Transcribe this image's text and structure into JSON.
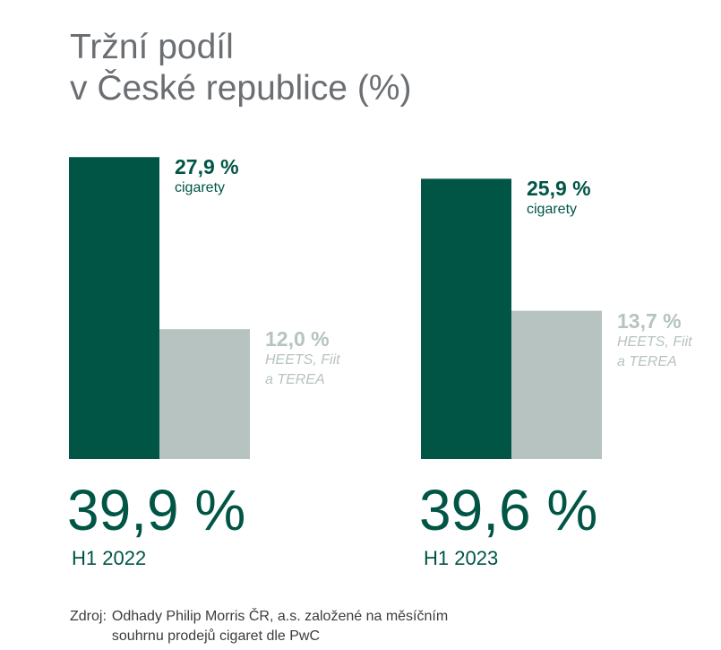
{
  "title_line1": "Tržní podíl",
  "title_line2": "v České republice (%)",
  "chart_data": {
    "type": "bar",
    "categories": [
      "H1 2022",
      "H1 2023"
    ],
    "series": [
      {
        "name": "cigarety",
        "values": [
          27.9,
          25.9
        ]
      },
      {
        "name": "HEETS, Fiit a TEREA",
        "values": [
          12.0,
          13.7
        ]
      }
    ],
    "ylim": [
      0,
      28.5
    ],
    "grid": false
  },
  "groups": [
    {
      "total": "39,9 %",
      "period": "H1 2022",
      "dark_value": "27,9 %",
      "dark_label": "cigarety",
      "light_value": "12,0 %",
      "light_label_1": "HEETS, Fiit",
      "light_label_2": "a TEREA"
    },
    {
      "total": "39,6 %",
      "period": "H1 2023",
      "dark_value": "25,9 %",
      "dark_label": "cigarety",
      "light_value": "13,7 %",
      "light_label_1": "HEETS, Fiit",
      "light_label_2": "a TEREA"
    }
  ],
  "source_prefix": "Zdroj:",
  "source_line1": "Odhady Philip Morris ČR, a.s. založené na měsíčním",
  "source_line2": "souhrnu prodejů cigaret dle PwC",
  "colors": {
    "dark": "#005545",
    "light": "#b6c3c0"
  }
}
